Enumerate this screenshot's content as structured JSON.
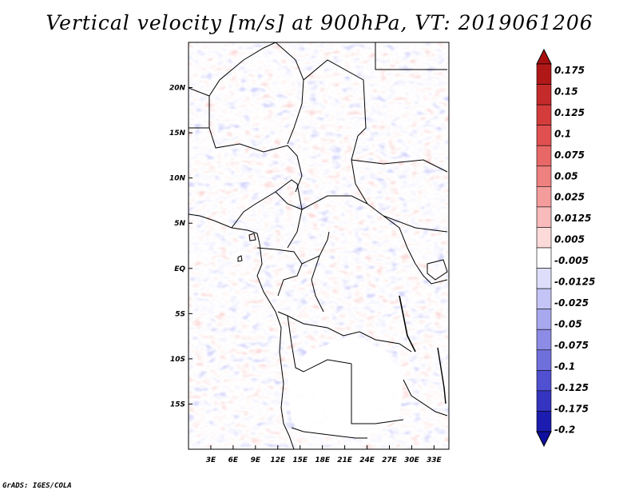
{
  "title": "Vertical velocity [m/s] at 900hPa, VT: 2019061206",
  "credit": "GrADS: IGES/COLA",
  "map": {
    "lon_range": [
      0,
      35
    ],
    "lat_range": [
      -20,
      25
    ],
    "lon_ticks": [
      "3E",
      "6E",
      "9E",
      "12E",
      "15E",
      "18E",
      "21E",
      "24E",
      "27E",
      "30E",
      "33E"
    ],
    "lon_tick_values": [
      3,
      6,
      9,
      12,
      15,
      18,
      21,
      24,
      27,
      30,
      33
    ],
    "lat_ticks": [
      "20N",
      "15N",
      "10N",
      "5N",
      "EQ",
      "5S",
      "10S",
      "15S"
    ],
    "lat_tick_values": [
      20,
      15,
      10,
      5,
      0,
      -5,
      -10,
      -15
    ]
  },
  "colorbar": {
    "labels": [
      "0.175",
      "0.15",
      "0.125",
      "0.1",
      "0.075",
      "0.05",
      "0.025",
      "0.0125",
      "0.005",
      "-0.005",
      "-0.0125",
      "-0.025",
      "-0.05",
      "-0.075",
      "-0.1",
      "-0.125",
      "-0.175",
      "-0.2"
    ],
    "colors": [
      "#b01818",
      "#c42a2a",
      "#d43c3c",
      "#e05050",
      "#e86868",
      "#ee8080",
      "#f49c9c",
      "#f8baba",
      "#fcdada",
      "#ffffff",
      "#dedefa",
      "#c4c4f6",
      "#a8a8ee",
      "#8c8ce6",
      "#7070dc",
      "#5050d0",
      "#3434c0",
      "#1c1cb0"
    ],
    "top_color": "#a81010",
    "bottom_color": "#1010a0"
  }
}
